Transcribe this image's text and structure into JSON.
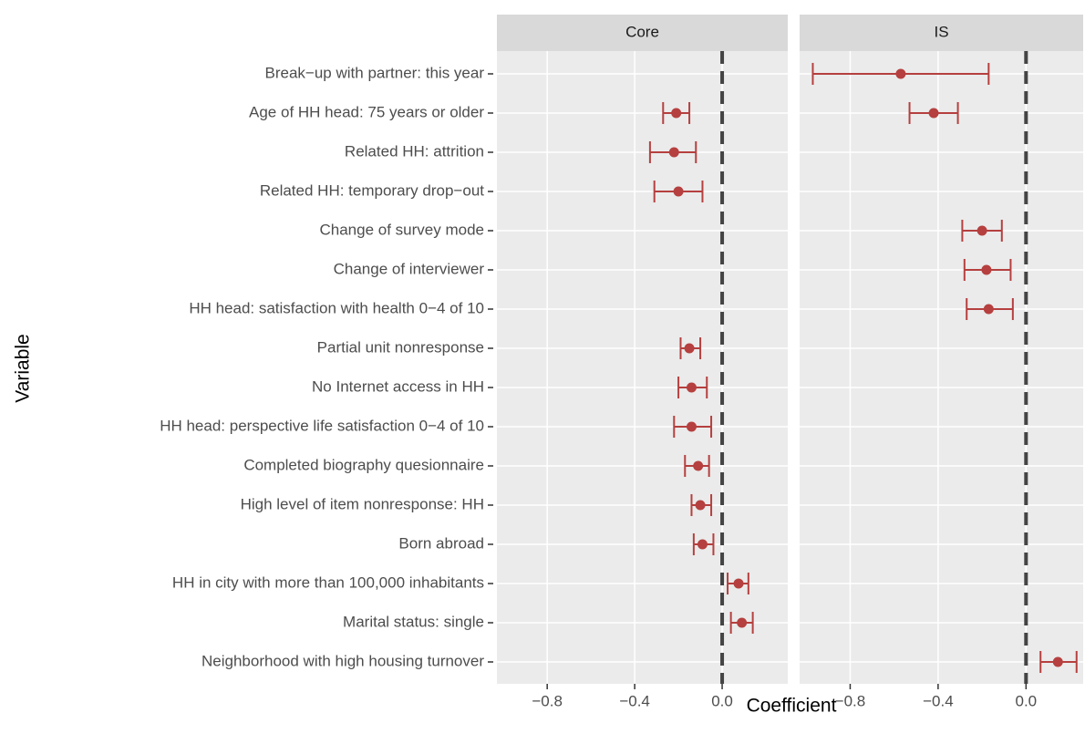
{
  "chart_data": [
    {
      "type": "errorbar",
      "title": "Core",
      "xlabel": "Coefficient",
      "ylabel": "Variable",
      "categories": [
        "Break−up with partner: this year",
        "Age of HH head: 75 years or older",
        "Related HH: attrition",
        "Related HH: temporary drop−out",
        "Change of survey mode",
        "Change of interviewer",
        "HH head: satisfaction with health 0−4 of 10",
        "Partial unit nonresponse",
        "No Internet access in HH",
        "HH head: perspective life satisfaction 0−4 of 10",
        "Completed biography quesionnaire",
        "High level of item nonresponse: HH",
        "Born abroad",
        "HH in city with more than 100,000 inhabitants",
        "Marital status: single",
        "Neighborhood with high housing turnover"
      ],
      "values": [
        null,
        -0.21,
        -0.22,
        -0.2,
        null,
        null,
        null,
        -0.15,
        -0.14,
        -0.14,
        -0.11,
        -0.1,
        -0.09,
        0.075,
        0.09,
        null
      ],
      "lower": [
        null,
        -0.27,
        -0.33,
        -0.31,
        null,
        null,
        null,
        -0.19,
        -0.2,
        -0.22,
        -0.17,
        -0.14,
        -0.13,
        0.025,
        0.04,
        null
      ],
      "upper": [
        null,
        -0.15,
        -0.12,
        -0.09,
        null,
        null,
        null,
        -0.1,
        -0.07,
        -0.05,
        -0.06,
        -0.05,
        -0.04,
        0.12,
        0.14,
        null
      ],
      "color": "#b5403f",
      "xlim": [
        -1.03,
        0.3
      ],
      "xticks": [
        {
          "value": -0.8,
          "label": "−0.8"
        },
        {
          "value": -0.4,
          "label": "−0.4"
        },
        {
          "value": 0,
          "label": "0.0"
        }
      ],
      "ref_line": 0,
      "grid": true
    },
    {
      "type": "errorbar",
      "title": "IS",
      "values": [
        -0.57,
        -0.42,
        null,
        null,
        -0.2,
        -0.18,
        -0.17,
        null,
        null,
        null,
        null,
        null,
        null,
        null,
        null,
        0.145
      ],
      "lower": [
        -0.97,
        -0.53,
        null,
        null,
        -0.29,
        -0.28,
        -0.27,
        null,
        null,
        null,
        null,
        null,
        null,
        null,
        null,
        0.066
      ],
      "upper": [
        -0.17,
        -0.31,
        null,
        null,
        -0.11,
        -0.07,
        -0.06,
        null,
        null,
        null,
        null,
        null,
        null,
        null,
        null,
        0.23
      ],
      "color": "#b5403f",
      "xlim": [
        -1.03,
        0.26
      ],
      "xticks": [
        {
          "value": -0.8,
          "label": "−0.8"
        },
        {
          "value": -0.4,
          "label": "−0.4"
        },
        {
          "value": 0,
          "label": "0.0"
        }
      ],
      "ref_line": 0,
      "grid": true
    }
  ]
}
